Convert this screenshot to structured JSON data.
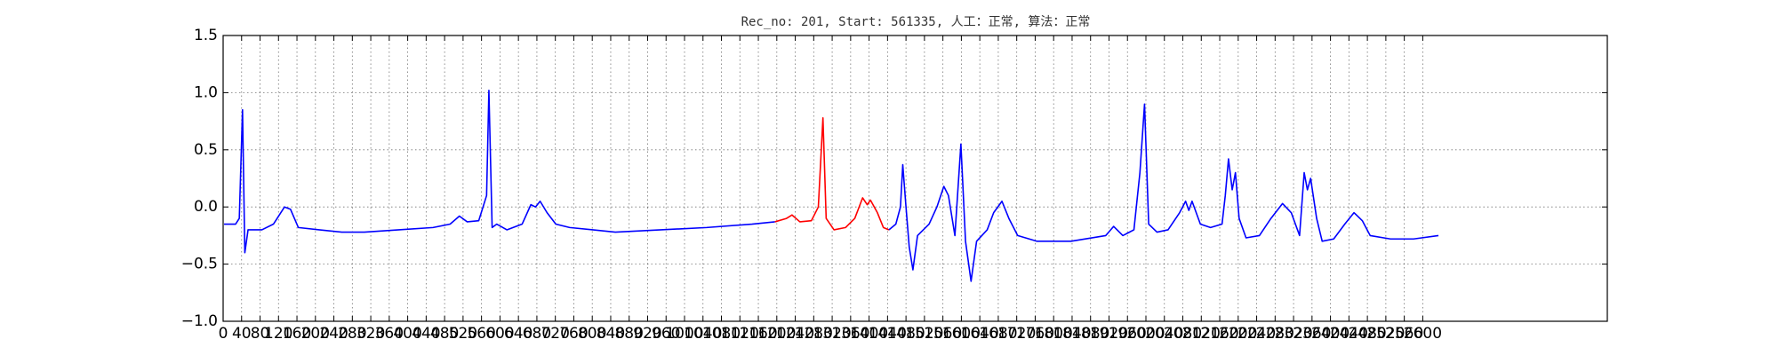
{
  "chart_data": {
    "type": "line",
    "title": "Rec_no: 201, Start: 561335, 人工：正常, 算法：正常",
    "xlim": [
      0,
      3000
    ],
    "xticks": [
      0,
      40,
      80,
      120,
      160,
      200,
      240,
      280,
      320,
      360,
      400,
      440,
      480,
      520,
      560,
      600,
      640,
      680,
      720,
      760,
      800,
      840,
      880,
      920,
      960,
      1000,
      1040,
      1080,
      1120,
      1160,
      1200,
      1240,
      1280,
      1320,
      1360,
      1400,
      1440,
      1480,
      1520,
      1560,
      1600,
      1640,
      1680,
      1720,
      1760,
      1800,
      1840,
      1880,
      1920,
      1960,
      2000,
      2040,
      2080,
      2120,
      2160,
      2200,
      2240,
      2280,
      2320,
      2360,
      2400,
      2440,
      2480,
      2520,
      2560,
      2600
    ],
    "ylim": [
      -1,
      1.5
    ],
    "yticks": [
      {
        "value": -1,
        "label": "−1.0"
      },
      {
        "value": -0.5,
        "label": "−0.5"
      },
      {
        "value": 0,
        "label": "0.0"
      },
      {
        "value": 0.5,
        "label": "0.5"
      },
      {
        "value": 1,
        "label": "1.0"
      },
      {
        "value": 1.5,
        "label": "1.5"
      }
    ],
    "grid": true,
    "series": [
      {
        "color": "#0000ff",
        "x": [
          2,
          27,
          35,
          42,
          47,
          54,
          84,
          109,
          133,
          146,
          163,
          208,
          257,
          306,
          381,
          455,
          492,
          512,
          529,
          554,
          571,
          576,
          583,
          593,
          615,
          648,
          667,
          677,
          687,
          702,
          721,
          751,
          801,
          850,
          949,
          1048,
          1146,
          1196
        ],
        "values": [
          -0.15,
          -0.15,
          -0.1,
          0.85,
          -0.4,
          -0.2,
          -0.2,
          -0.15,
          0.0,
          -0.02,
          -0.18,
          -0.2,
          -0.22,
          -0.22,
          -0.2,
          -0.18,
          -0.15,
          -0.08,
          -0.13,
          -0.12,
          0.1,
          1.02,
          -0.18,
          -0.15,
          -0.2,
          -0.15,
          0.02,
          0.0,
          0.05,
          -0.05,
          -0.15,
          -0.18,
          -0.2,
          -0.22,
          -0.2,
          -0.18,
          -0.15,
          -0.13
        ]
      },
      {
        "color": "#ff0000",
        "x": [
          1196,
          1221,
          1233,
          1250,
          1275,
          1290,
          1300,
          1307,
          1324,
          1349,
          1369,
          1386,
          1396,
          1403,
          1418,
          1431,
          1443
        ],
        "values": [
          -0.13,
          -0.1,
          -0.07,
          -0.13,
          -0.12,
          0.0,
          0.78,
          -0.1,
          -0.2,
          -0.18,
          -0.1,
          0.08,
          0.02,
          0.06,
          -0.05,
          -0.18,
          -0.2
        ]
      },
      {
        "color": "#0000ff",
        "x": [
          1443,
          1458,
          1468,
          1473,
          1480,
          1487,
          1495,
          1505,
          1530,
          1547,
          1562,
          1572,
          1586,
          1599,
          1609,
          1621,
          1633,
          1656,
          1670,
          1688,
          1703,
          1722,
          1764,
          1838,
          1913,
          1930,
          1950,
          1974,
          1987,
          1997,
          2006,
          2024,
          2048,
          2073,
          2086,
          2093,
          2100,
          2118,
          2140,
          2165,
          2172,
          2179,
          2187,
          2194,
          2202,
          2217,
          2246,
          2271,
          2296,
          2315,
          2333,
          2343,
          2350,
          2357,
          2370,
          2382,
          2407,
          2431,
          2451,
          2469,
          2486,
          2530,
          2580,
          2634
        ],
        "values": [
          -0.2,
          -0.15,
          0.0,
          0.37,
          0.0,
          -0.35,
          -0.55,
          -0.25,
          -0.15,
          0.0,
          0.18,
          0.1,
          -0.25,
          0.55,
          -0.3,
          -0.65,
          -0.3,
          -0.2,
          -0.05,
          0.05,
          -0.1,
          -0.25,
          -0.3,
          -0.3,
          -0.25,
          -0.17,
          -0.25,
          -0.2,
          0.3,
          0.9,
          -0.15,
          -0.22,
          -0.2,
          -0.05,
          0.05,
          -0.03,
          0.05,
          -0.15,
          -0.18,
          -0.15,
          0.1,
          0.42,
          0.15,
          0.3,
          -0.1,
          -0.27,
          -0.25,
          -0.1,
          0.03,
          -0.05,
          -0.25,
          0.3,
          0.15,
          0.25,
          -0.1,
          -0.3,
          -0.28,
          -0.15,
          -0.05,
          -0.12,
          -0.25,
          -0.28,
          -0.28,
          -0.25
        ]
      }
    ]
  }
}
